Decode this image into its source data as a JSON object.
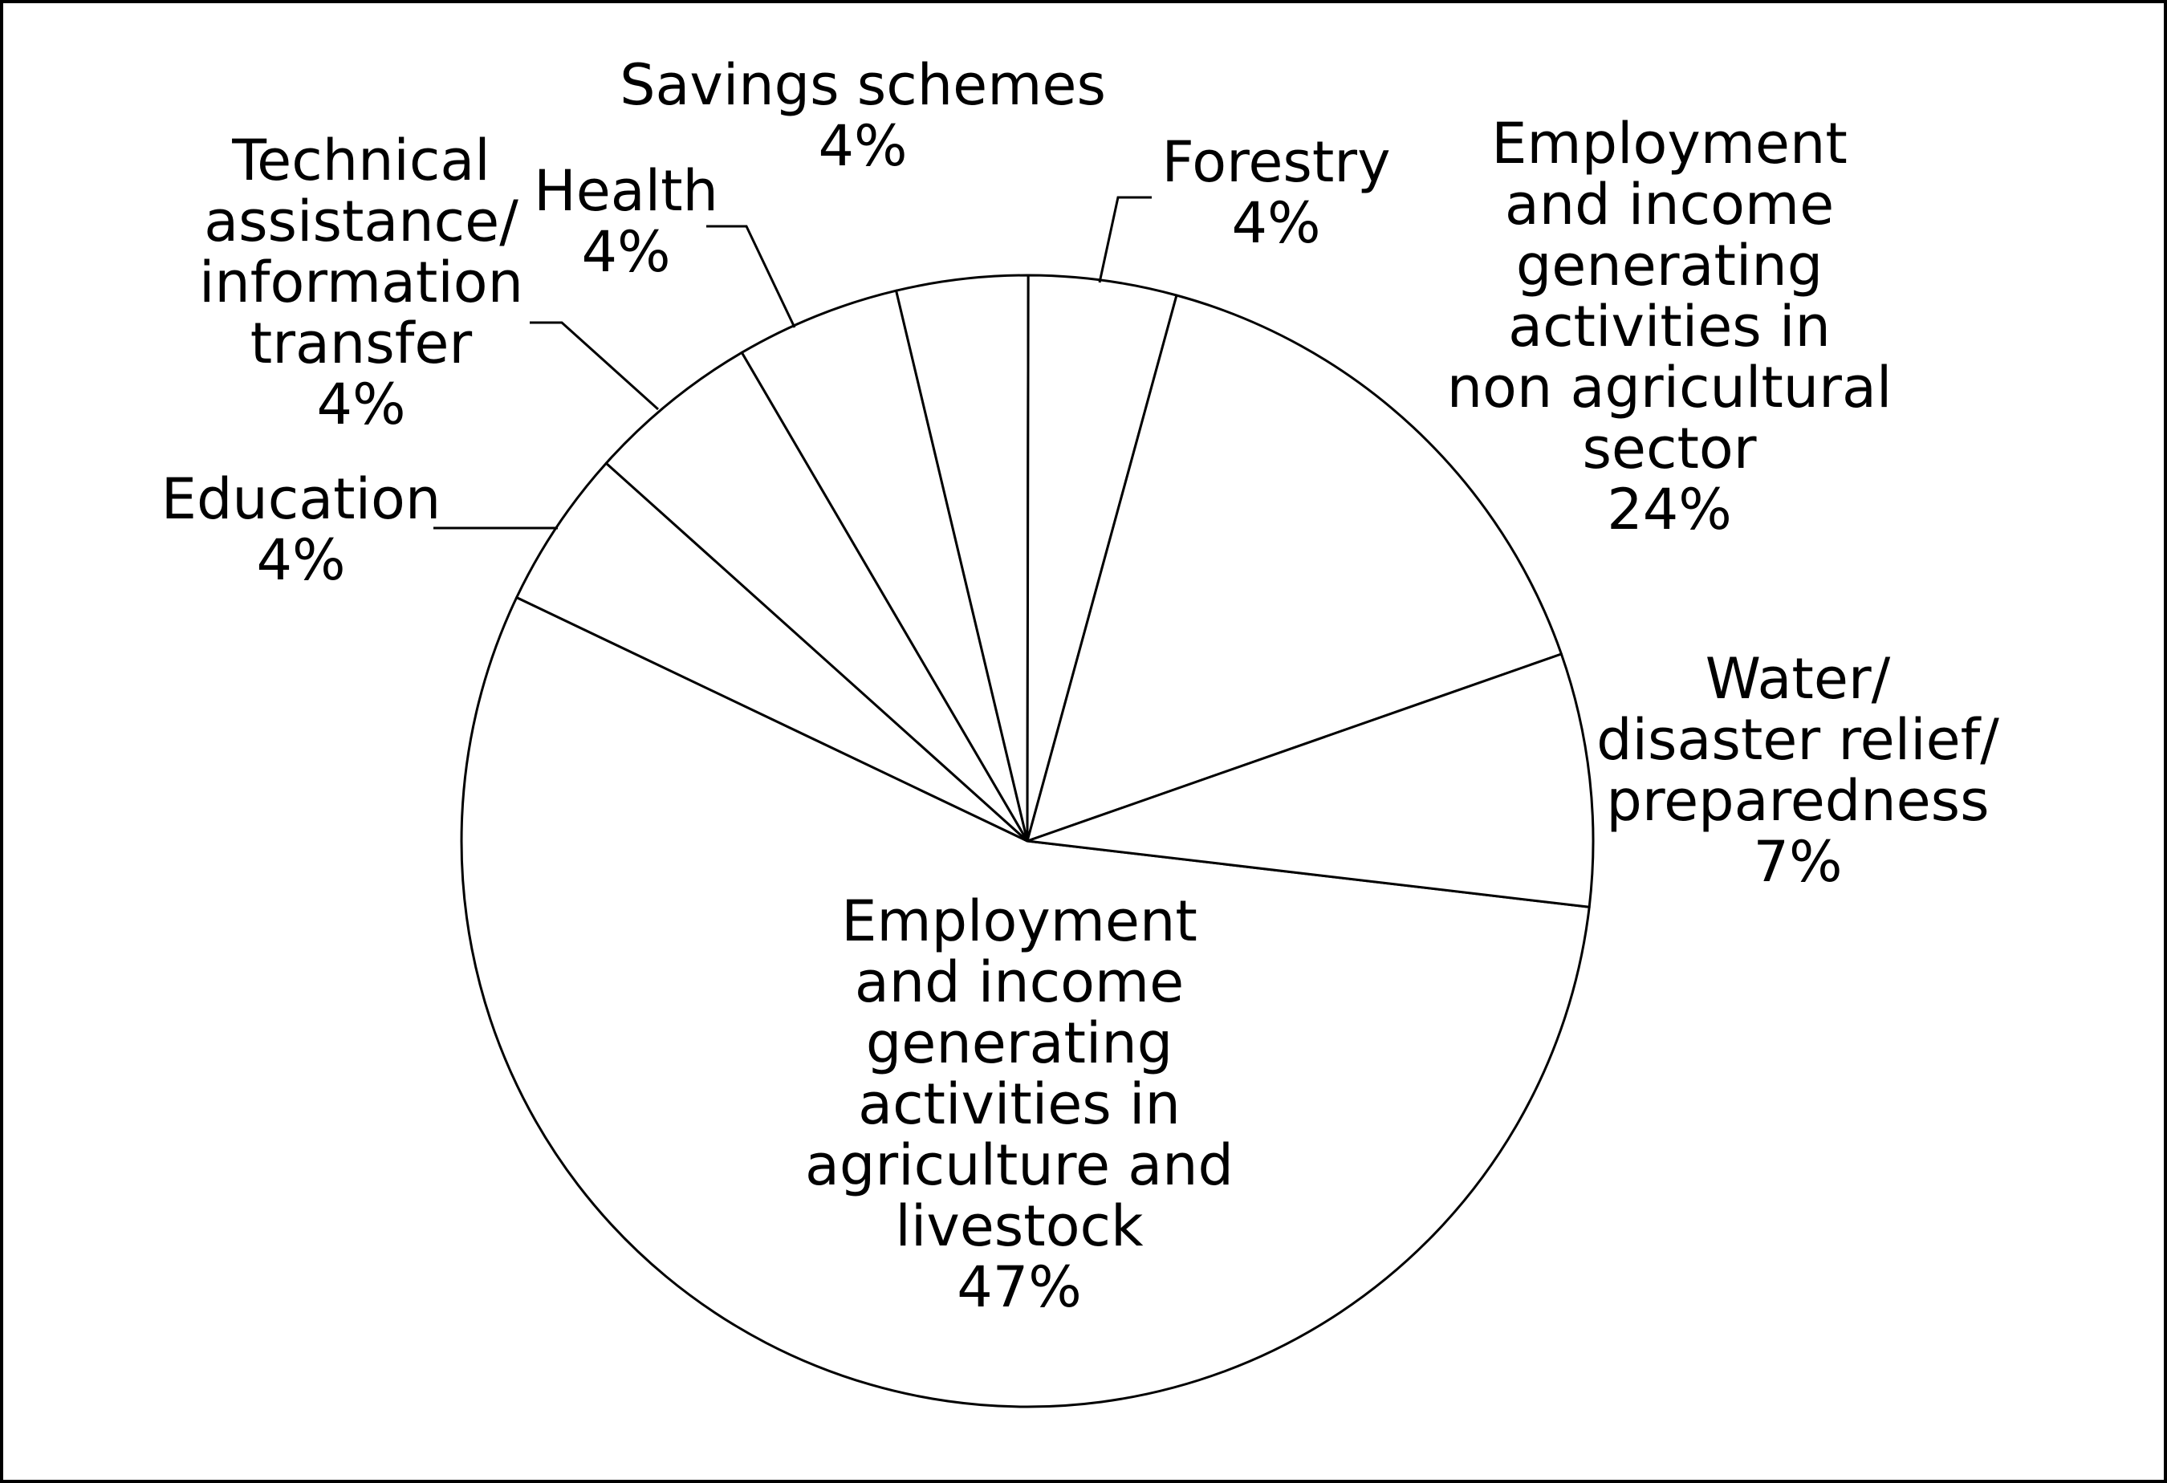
{
  "chart_data": {
    "type": "pie",
    "title": "",
    "slices": [
      {
        "key": "agriculture",
        "label_lines": [
          "Employment",
          "and income",
          "generating",
          "activities in",
          "agriculture and",
          "livestock"
        ],
        "value_label": "47%",
        "value": 47
      },
      {
        "key": "education",
        "label_lines": [
          "Education"
        ],
        "value_label": "4%",
        "value": 4
      },
      {
        "key": "technical",
        "label_lines": [
          "Technical",
          "assistance/",
          "information",
          "transfer"
        ],
        "value_label": "4%",
        "value": 4
      },
      {
        "key": "health",
        "label_lines": [
          "Health"
        ],
        "value_label": "4%",
        "value": 4
      },
      {
        "key": "savings",
        "label_lines": [
          "Savings schemes"
        ],
        "value_label": "4%",
        "value": 4
      },
      {
        "key": "forestry",
        "label_lines": [
          "Forestry"
        ],
        "value_label": "4%",
        "value": 4
      },
      {
        "key": "non-agricultural",
        "label_lines": [
          "Employment",
          "and income",
          "generating",
          "activities in",
          "non agricultural",
          "sector"
        ],
        "value_label": "24%",
        "value": 24
      },
      {
        "key": "water",
        "label_lines": [
          "Water/",
          "disaster relief/",
          "preparedness"
        ],
        "value_label": "7%",
        "value": 7
      }
    ],
    "colors": {
      "fill": "#ffffff",
      "stroke": "#000000",
      "text": "#000000"
    }
  }
}
